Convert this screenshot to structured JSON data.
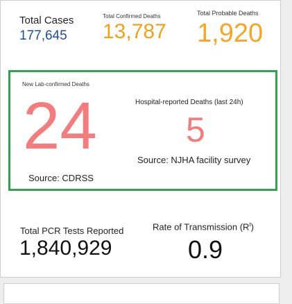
{
  "total_cases": {
    "label": "Total Cases",
    "value": "177,645",
    "color": "#1f4e9a"
  },
  "confirmed_deaths": {
    "label": "Total Confirmed Deaths",
    "value": "13,787",
    "color": "#f0a318"
  },
  "probable_deaths": {
    "label": "Total Probable Deaths",
    "value": "1,920",
    "color": "#f5a623"
  },
  "new_lab_deaths": {
    "label": "New Lab-confirmed Deaths",
    "value": "24",
    "source": "Source: CDRSS",
    "color": "#f47c7c"
  },
  "hospital_deaths": {
    "label": "Hospital-reported Deaths (last 24h)",
    "value": "5",
    "source": "Source: NJHA facility survey",
    "color": "#f47c7c"
  },
  "pcr_tests": {
    "label": "Total PCR Tests Reported",
    "value": "1,840,929"
  },
  "transmission": {
    "label": "Rate of Transmission (R",
    "label_sup": "t",
    "label_end": ")",
    "value": "0.9"
  },
  "highlight_border_color": "#2ea44f"
}
